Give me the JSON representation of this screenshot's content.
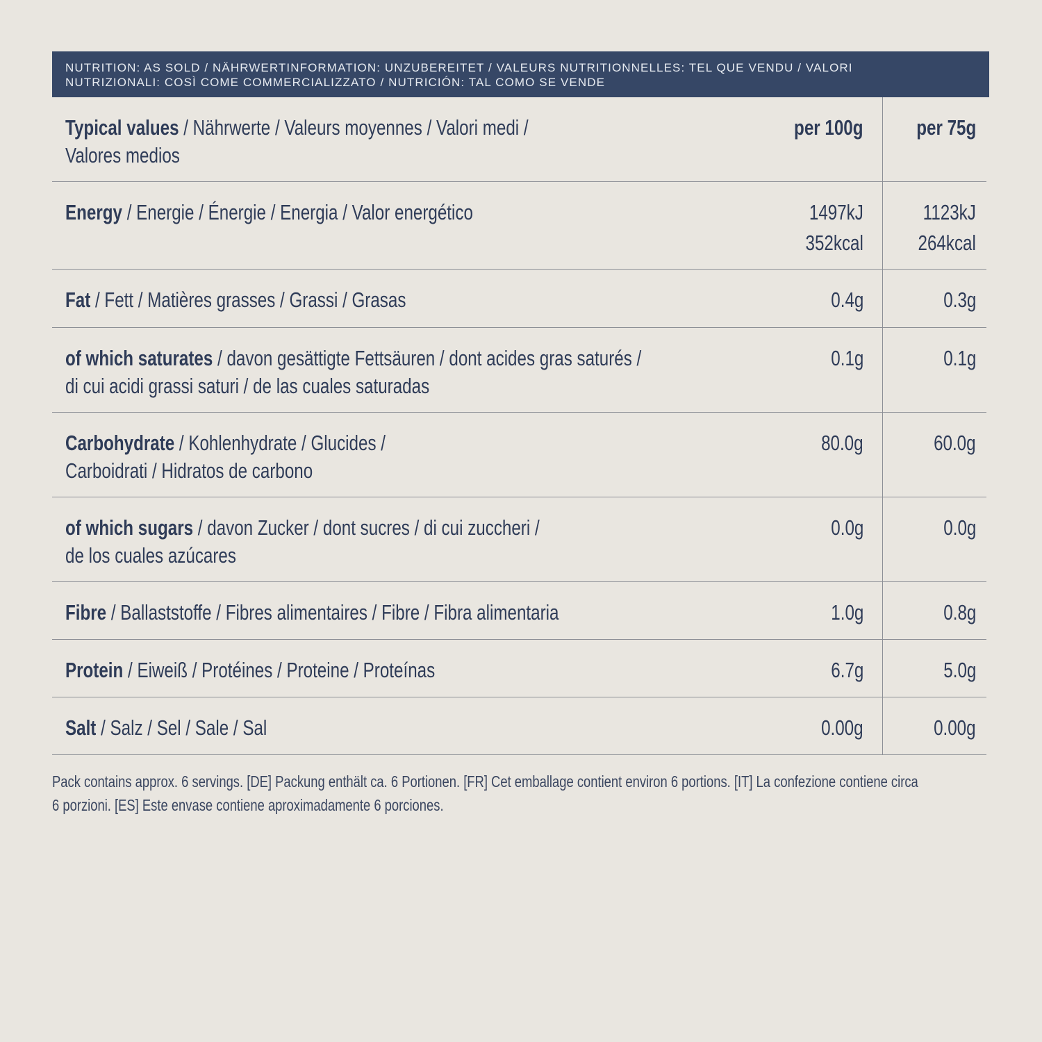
{
  "banner": {
    "line1": "NUTRITION: AS SOLD / NÄHRWERTINFORMATION: UNZUBEREITET / VALEURS NUTRITIONNELLES: TEL QUE VENDU / VALORI",
    "line2": "NUTRIZIONALI: COSÌ COME COMMERCIALIZZATO / NUTRICIÓN: TAL COMO SE VENDE"
  },
  "header": {
    "bold": "Typical values",
    "rest": " / Nährwerte / Valeurs moyennes / Valori medi /",
    "line2": "Valores medios",
    "col1": "per 100g",
    "col2": "per 75g"
  },
  "rows": [
    {
      "bold": "Energy",
      "rest": " / Energie / Énergie / Energia / Valor energético",
      "line2": "",
      "v1": "1497kJ",
      "v1b": "352kcal",
      "v2": "1123kJ",
      "v2b": "264kcal"
    },
    {
      "bold": "Fat",
      "rest": " / Fett / Matières grasses / Grassi / Grasas",
      "line2": "",
      "v1": "0.4g",
      "v2": "0.3g"
    },
    {
      "bold": "of which saturates",
      "rest": " / davon gesättigte Fettsäuren / dont acides gras saturés /",
      "line2": "di cui acidi grassi saturi / de las cuales saturadas",
      "v1": "0.1g",
      "v2": "0.1g"
    },
    {
      "bold": "Carbohydrate",
      "rest": " / Kohlenhydrate / Glucides /",
      "line2": "Carboidrati / Hidratos de carbono",
      "v1": "80.0g",
      "v2": "60.0g"
    },
    {
      "bold": "of which sugars",
      "rest": " / davon Zucker / dont sucres / di cui zuccheri /",
      "line2": "de los cuales azúcares",
      "v1": "0.0g",
      "v2": "0.0g"
    },
    {
      "bold": "Fibre",
      "rest": " / Ballaststoffe / Fibres alimentaires / Fibre / Fibra alimentaria",
      "line2": "",
      "v1": "1.0g",
      "v2": "0.8g"
    },
    {
      "bold": "Protein",
      "rest": " / Eiweiß / Protéines / Proteine / Proteínas",
      "line2": "",
      "v1": "6.7g",
      "v2": "5.0g"
    },
    {
      "bold": "Salt",
      "rest": " / Salz / Sel / Sale / Sal",
      "line2": "",
      "v1": "0.00g",
      "v2": "0.00g"
    }
  ],
  "footer": {
    "line1": "Pack contains approx. 6 servings. [DE] Packung enthält ca. 6 Portionen. [FR] Cet emballage contient environ 6 portions. [IT] La confezione contiene circa",
    "line2": "6 porzioni. [ES] Este envase contiene aproximadamente 6 porciones."
  },
  "colors": {
    "banner": "#364766",
    "text": "#2f3c58",
    "background": "#e9e6e0"
  }
}
